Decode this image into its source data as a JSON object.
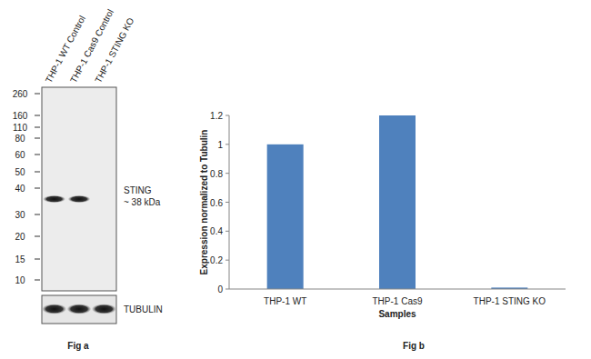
{
  "captions": [
    "Fig a",
    "Fig b"
  ],
  "blot": {
    "lanes": [
      "THP-1 WT Control",
      "THP-1 Cas9 Control",
      "THP-1 STING KO"
    ],
    "markers": [
      260,
      160,
      110,
      80,
      60,
      50,
      40,
      30,
      20,
      15,
      10
    ],
    "band_label": "STING",
    "band_size": "~ 38 kDa",
    "band_present": [
      true,
      true,
      false
    ],
    "loading_label": "TUBULIN"
  },
  "chart_data": {
    "type": "bar",
    "categories": [
      "THP-1 WT",
      "THP-1 Cas9",
      "THP-1 STING KO"
    ],
    "values": [
      1,
      1.2,
      0.01
    ],
    "color": "#4f81bd",
    "x_label": "Samples",
    "y_label": "Expression normalized to Tubulin",
    "ylim": [
      0,
      1.2
    ],
    "yticks": [
      0,
      0.2,
      0.4,
      0.6,
      0.8,
      1,
      1.2
    ],
    "grid": false
  }
}
